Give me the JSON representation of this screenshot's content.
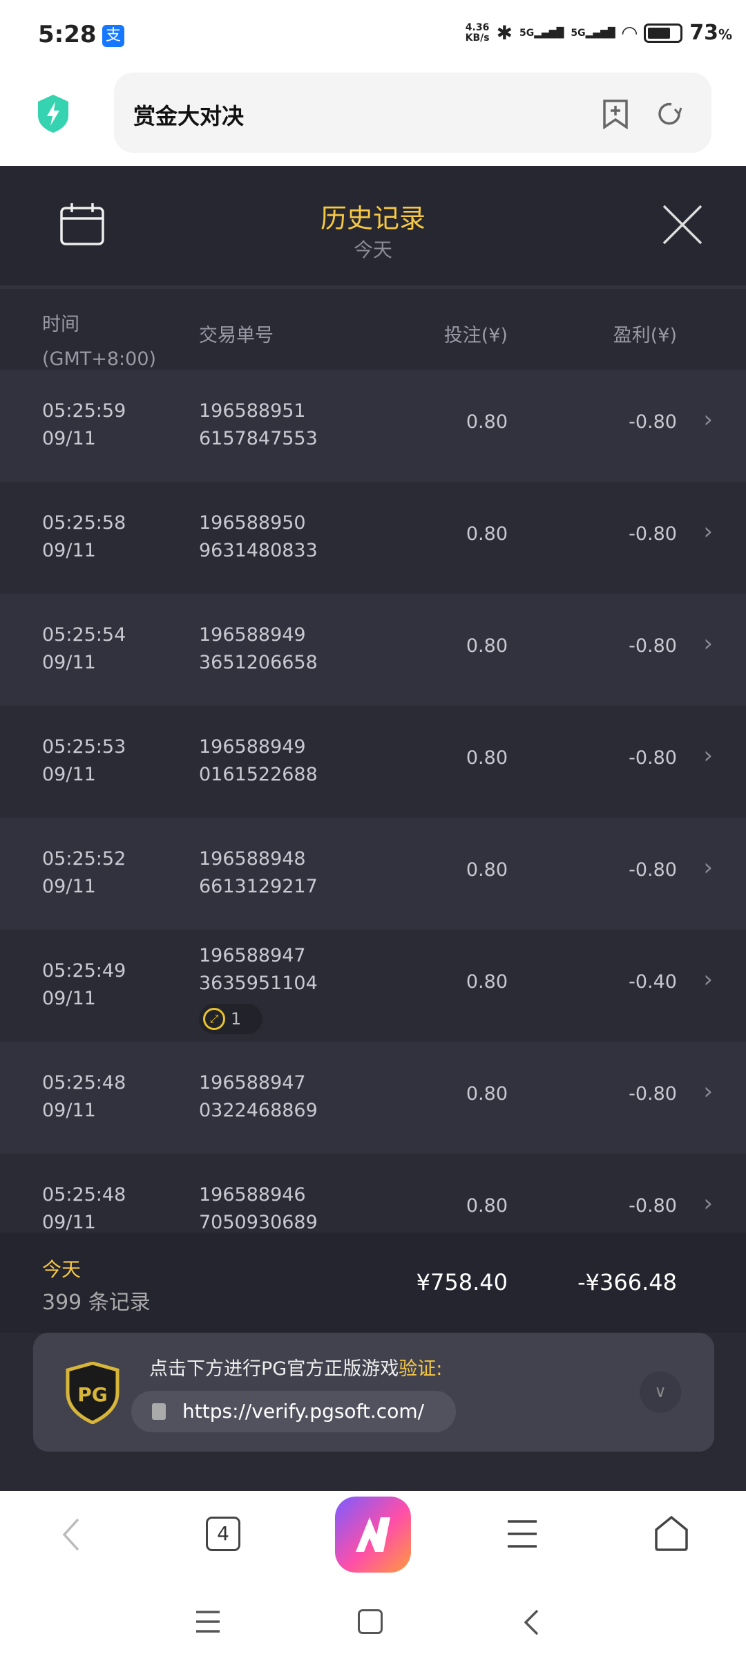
{
  "status_bar": {
    "time": "5:28",
    "app_icon": "alipay-icon",
    "net_speed_value": "4.36",
    "net_speed_unit": "KB/s",
    "sim1": "5G",
    "sim2": "5G",
    "battery": "73",
    "battery_unit": "%"
  },
  "browser": {
    "page_title": "赏金大对决",
    "icons": [
      "security-shield-icon",
      "add-bookmark-icon",
      "refresh-icon"
    ]
  },
  "history": {
    "title": "历史记录",
    "subtitle": "今天"
  },
  "columns": {
    "time": "时间",
    "timezone": "(GMT+8:00)",
    "txn": "交易单号",
    "bet": "投注(¥)",
    "profit": "盈利(¥)"
  },
  "rows": [
    {
      "time": "05:25:59",
      "date": "09/11",
      "id1": "196588951",
      "id2": "6157847553",
      "bet": "0.80",
      "profit": "-0.80"
    },
    {
      "time": "05:25:58",
      "date": "09/11",
      "id1": "196588950",
      "id2": "9631480833",
      "bet": "0.80",
      "profit": "-0.80"
    },
    {
      "time": "05:25:54",
      "date": "09/11",
      "id1": "196588949",
      "id2": "3651206658",
      "bet": "0.80",
      "profit": "-0.80"
    },
    {
      "time": "05:25:53",
      "date": "09/11",
      "id1": "196588949",
      "id2": "0161522688",
      "bet": "0.80",
      "profit": "-0.80"
    },
    {
      "time": "05:25:52",
      "date": "09/11",
      "id1": "196588948",
      "id2": "6613129217",
      "bet": "0.80",
      "profit": "-0.80"
    },
    {
      "time": "05:25:49",
      "date": "09/11",
      "id1": "196588947",
      "id2": "3635951104",
      "bet": "0.80",
      "profit": "-0.40",
      "badge": "1"
    },
    {
      "time": "05:25:48",
      "date": "09/11",
      "id1": "196588947",
      "id2": "0322468869",
      "bet": "0.80",
      "profit": "-0.80"
    },
    {
      "time": "05:25:48",
      "date": "09/11",
      "id1": "196588946",
      "id2": "7050930689",
      "bet": "0.80",
      "profit": "-0.80"
    }
  ],
  "summary": {
    "label": "今天",
    "count": "399 条记录",
    "total_bet": "¥758.40",
    "total_profit": "-¥366.48"
  },
  "banner": {
    "text": "点击下方进行PG官方正版游戏",
    "highlight": "验证",
    "colon": ":",
    "url": "https://verify.pgsoft.com/",
    "logo": "PG"
  },
  "bottom_nav": {
    "tabs_count": "4"
  },
  "colors": {
    "accent": "#f6c844",
    "background": "#2a2a35"
  }
}
